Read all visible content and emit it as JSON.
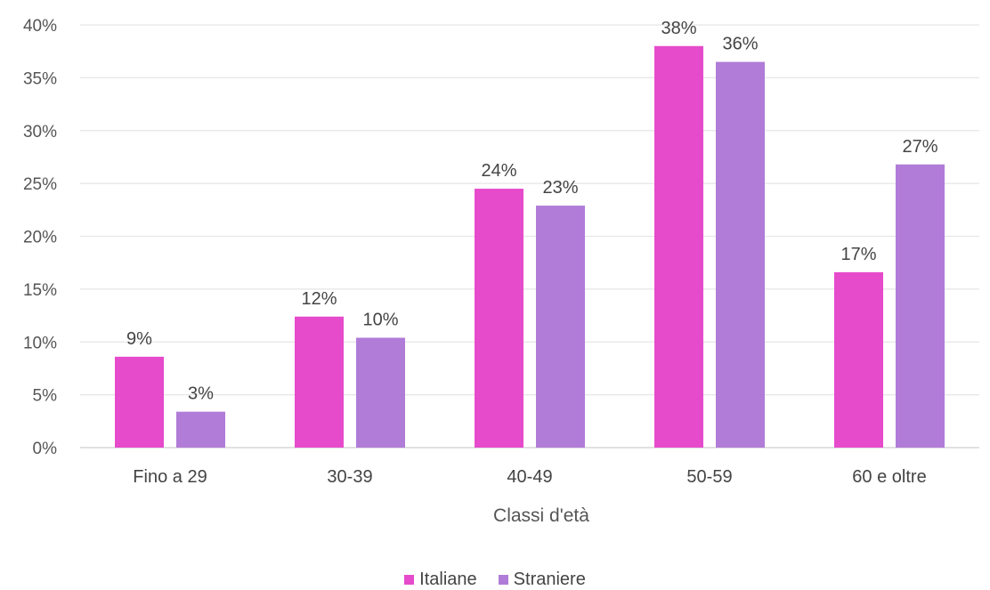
{
  "chart_data": {
    "type": "bar",
    "categories": [
      "Fino a 29",
      "30-39",
      "40-49",
      "50-59",
      "60 e oltre"
    ],
    "series": [
      {
        "name": "Italiane",
        "color": "#E64BCB",
        "values": [
          8.6,
          12.4,
          24.5,
          38.0,
          16.6
        ],
        "labels": [
          "9%",
          "12%",
          "24%",
          "38%",
          "17%"
        ]
      },
      {
        "name": "Straniere",
        "color": "#B07CD8",
        "values": [
          3.4,
          10.4,
          22.9,
          36.5,
          26.8
        ],
        "labels": [
          "3%",
          "10%",
          "23%",
          "36%",
          "27%"
        ]
      }
    ],
    "xlabel": "Classi d'età",
    "ylabel": "",
    "ylim": [
      0,
      40
    ],
    "yticks": [
      "0%",
      "5%",
      "10%",
      "15%",
      "20%",
      "25%",
      "30%",
      "35%",
      "40%"
    ],
    "grid": true,
    "legend_position": "bottom"
  }
}
